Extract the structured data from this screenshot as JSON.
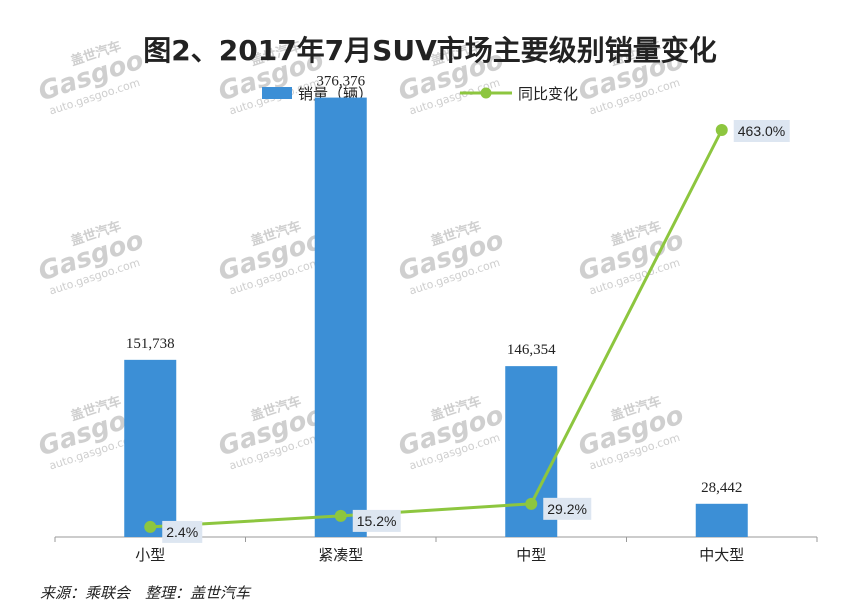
{
  "chart_data": {
    "type": "bar",
    "title": "图2、2017年7月SUV市场主要级别销量变化",
    "categories": [
      "小型",
      "紧凑型",
      "中型",
      "中大型"
    ],
    "series": [
      {
        "name": "销量（辆）",
        "type": "bar",
        "axis": "left",
        "color": "#3c8fd6",
        "values": [
          151738,
          376376,
          146354,
          28442
        ],
        "labels": [
          "151,738",
          "376,376",
          "146,354",
          "28,442"
        ]
      },
      {
        "name": "同比变化",
        "type": "line",
        "axis": "right",
        "color": "#8dc63f",
        "values": [
          2.4,
          15.2,
          29.2,
          463.0
        ],
        "labels": [
          "2.4%",
          "15.2%",
          "29.2%",
          "463.0%"
        ]
      }
    ],
    "ylim": [
      0,
      400000
    ],
    "y2lim": [
      0,
      500
    ],
    "legend_position": "top",
    "grid": false
  },
  "source": "来源：乘联会　整理：盖世汽车",
  "watermark": {
    "logo": "Gasgoo",
    "cn": "盖世汽车",
    "url": "auto.gasgoo.com"
  }
}
